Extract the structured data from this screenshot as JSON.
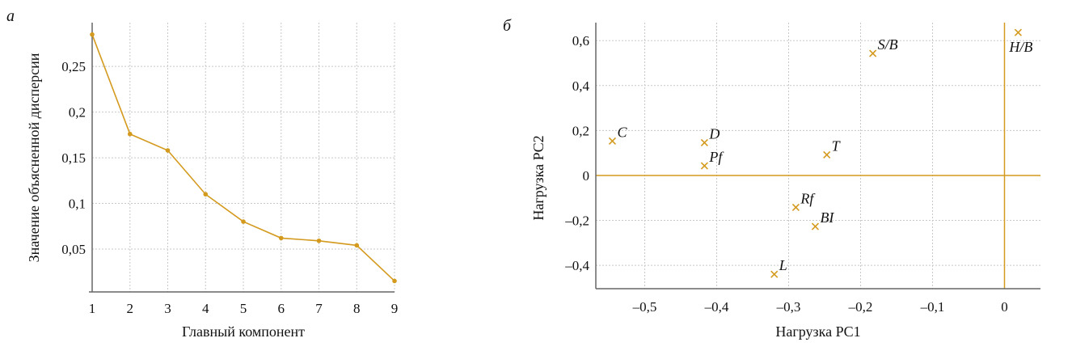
{
  "chart_data": [
    {
      "type": "line",
      "panel_label": "а",
      "xlabel": "Главный компонент",
      "ylabel": "Значение объясненной дисперсии",
      "x": [
        1,
        2,
        3,
        4,
        5,
        6,
        7,
        8,
        9
      ],
      "values": [
        0.285,
        0.176,
        0.158,
        0.11,
        0.08,
        0.062,
        0.059,
        0.054,
        0.015
      ],
      "xticks": [
        "1",
        "2",
        "3",
        "4",
        "5",
        "6",
        "7",
        "8",
        "9"
      ],
      "yticks": [
        {
          "v": 0.05,
          "label": "0,05"
        },
        {
          "v": 0.1,
          "label": "0,1"
        },
        {
          "v": 0.15,
          "label": "0,15"
        },
        {
          "v": 0.2,
          "label": "0,2"
        },
        {
          "v": 0.25,
          "label": "0,25"
        }
      ],
      "xlim": [
        1,
        9
      ],
      "ylim": [
        0.003,
        0.298
      ],
      "grid": true,
      "color": "#d49a1e"
    },
    {
      "type": "scatter",
      "panel_label": "б",
      "xlabel": "Нагрузка PC1",
      "ylabel": "Нагрузка PC2",
      "points": [
        {
          "label": "C",
          "x": -0.545,
          "y": 0.153
        },
        {
          "label": "D",
          "x": -0.417,
          "y": 0.146
        },
        {
          "label": "Pf",
          "x": -0.417,
          "y": 0.043
        },
        {
          "label": "T",
          "x": -0.247,
          "y": 0.092
        },
        {
          "label": "S/B",
          "x": -0.183,
          "y": 0.543
        },
        {
          "label": "H/B",
          "x": 0.019,
          "y": 0.636
        },
        {
          "label": "Rf",
          "x": -0.29,
          "y": -0.142
        },
        {
          "label": "BI",
          "x": -0.263,
          "y": -0.227
        },
        {
          "label": "L",
          "x": -0.32,
          "y": -0.44
        }
      ],
      "xticks": [
        {
          "v": -0.5,
          "label": "–0,5"
        },
        {
          "v": -0.4,
          "label": "–0,4"
        },
        {
          "v": -0.3,
          "label": "–0,3"
        },
        {
          "v": -0.2,
          "label": "–0,2"
        },
        {
          "v": -0.1,
          "label": "–0,1"
        },
        {
          "v": 0,
          "label": "0"
        }
      ],
      "yticks": [
        {
          "v": -0.4,
          "label": "–0,4"
        },
        {
          "v": -0.2,
          "label": "–0,2"
        },
        {
          "v": 0,
          "label": "0"
        },
        {
          "v": 0.2,
          "label": "0,2"
        },
        {
          "v": 0.4,
          "label": "0,4"
        },
        {
          "v": 0.6,
          "label": "0,6"
        }
      ],
      "xlim": [
        -0.568,
        0.05
      ],
      "ylim": [
        -0.504,
        0.68
      ],
      "grid": true,
      "color": "#d49a1e"
    }
  ]
}
